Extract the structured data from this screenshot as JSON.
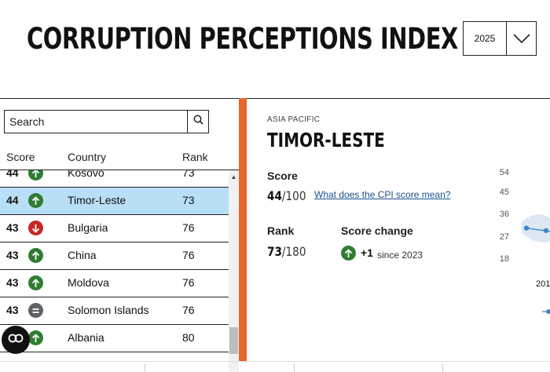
{
  "header": {
    "title": "CORRUPTION PERCEPTIONS INDEX",
    "year_selected": "2025"
  },
  "search": {
    "placeholder": "Search"
  },
  "table": {
    "headers": {
      "score": "Score",
      "country": "Country",
      "rank": "Rank"
    },
    "rows": [
      {
        "score": "44",
        "trend": "up",
        "country": "Kosovo",
        "rank": "73"
      },
      {
        "score": "44",
        "trend": "up",
        "country": "Timor-Leste",
        "rank": "73",
        "selected": true
      },
      {
        "score": "43",
        "trend": "down",
        "country": "Bulgaria",
        "rank": "76"
      },
      {
        "score": "43",
        "trend": "up",
        "country": "China",
        "rank": "76"
      },
      {
        "score": "43",
        "trend": "up",
        "country": "Moldova",
        "rank": "76"
      },
      {
        "score": "43",
        "trend": "equal",
        "country": "Solomon Islands",
        "rank": "76"
      },
      {
        "score": "43",
        "trend": "up",
        "country": "Albania",
        "rank": "80"
      }
    ]
  },
  "detail": {
    "region": "ASIA PACIFIC",
    "country": "TIMOR-LESTE",
    "score_label": "Score",
    "score_value": "44",
    "score_max": "/100",
    "cpi_link": "What does the CPI score mean?",
    "rank_label": "Rank",
    "rank_value": "73",
    "rank_max": "/180",
    "change_label": "Score change",
    "change_value": "+1",
    "change_since": "since 2023"
  },
  "chart_data": {
    "type": "line",
    "y_ticks": [
      "54",
      "45",
      "36",
      "27",
      "18"
    ],
    "x_label_visible": "201",
    "series": [
      {
        "values": [
          30,
          29
        ]
      }
    ]
  },
  "colors": {
    "accent_orange": "#e8652c",
    "up_green": "#2e7d32",
    "down_red": "#c62828",
    "equal_gray": "#5f6368",
    "selected_row": "#b8dff6",
    "chart_point": "#3c87c7"
  },
  "icons": {
    "fab": "cookie-settings-icon"
  }
}
